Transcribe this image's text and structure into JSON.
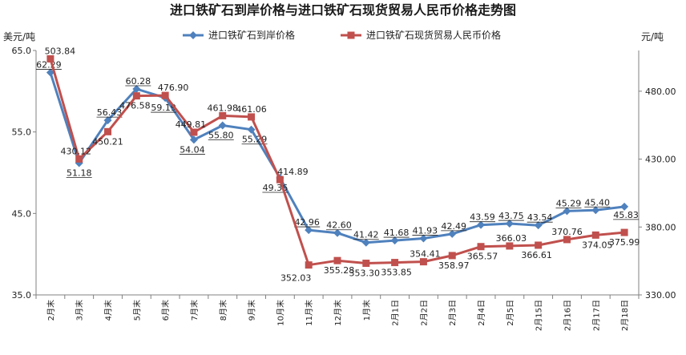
{
  "chart_data": {
    "type": "line",
    "title": "进口铁矿石到岸价格与进口铁矿石现货贸易人民币价格走势图",
    "y_left_unit": "美元/吨",
    "y_right_unit": "元/吨",
    "y_left": {
      "min": 35.0,
      "max": 65.0,
      "ticks": [
        "35.0",
        "45.0",
        "55.0",
        "65.0"
      ]
    },
    "y_right": {
      "min": 330.0,
      "max": 510.0,
      "ticks": [
        "330.00",
        "380.00",
        "430.00",
        "480.00"
      ]
    },
    "categories": [
      "2月末",
      "3月末",
      "4月末",
      "5月末",
      "6月末",
      "7月末",
      "8月末",
      "9月末",
      "10月末",
      "11月末",
      "12月末",
      "1月末",
      "2月1日",
      "2月2日",
      "2月3日",
      "2月4日",
      "2月5日",
      "2月15日",
      "2月16日",
      "2月17日",
      "2月18日"
    ],
    "series": [
      {
        "name": "进口铁矿石到岸价格",
        "axis": "left",
        "color": "#4F81BD",
        "values": [
          62.29,
          51.18,
          56.43,
          60.28,
          59.19,
          54.04,
          55.8,
          55.29,
          49.36,
          42.96,
          42.6,
          41.42,
          41.68,
          41.93,
          42.49,
          43.59,
          43.75,
          43.54,
          45.29,
          45.4,
          45.83
        ],
        "labels": [
          "62.29",
          "51.18",
          "56.43",
          "60.28",
          "59.19",
          "54.04",
          "55.80",
          "55.29",
          "49.36",
          "42.96",
          "42.60",
          "41.42",
          "41.68",
          "41.93",
          "42.49",
          "43.59",
          "43.75",
          "43.54",
          "45.29",
          "45.40",
          "45.83"
        ]
      },
      {
        "name": "进口铁矿石现货贸易人民币价格",
        "axis": "right",
        "color": "#C0504D",
        "values": [
          503.84,
          430.12,
          450.21,
          476.58,
          476.9,
          449.81,
          461.98,
          461.06,
          414.89,
          352.03,
          355.28,
          353.3,
          353.85,
          354.41,
          358.97,
          365.57,
          366.03,
          366.61,
          370.76,
          374.05,
          375.99
        ],
        "labels": [
          "503.84",
          "430.12",
          "450.21",
          "476.58",
          "476.90",
          "449.81",
          "461.98",
          "461.06",
          "414.89",
          "352.03",
          "355.28",
          "353.30",
          "353.85",
          "354.41",
          "358.97",
          "365.57",
          "366.03",
          "366.61",
          "370.76",
          "374.05",
          "375.99"
        ]
      }
    ],
    "legend_position": "top-center",
    "grid": false
  }
}
